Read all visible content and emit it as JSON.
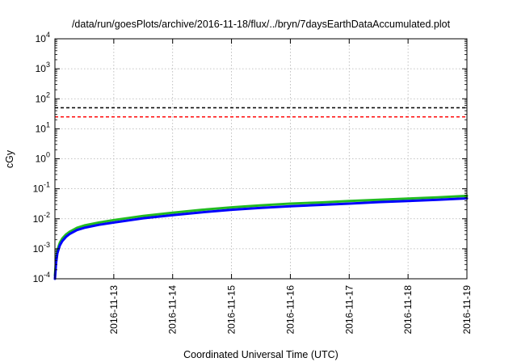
{
  "chart_data": {
    "type": "line",
    "title": "/data/run/goesPlots/archive/2016-11-18/flux/../bryn/7daysEarthDataAccumulated.plot",
    "xlabel": "Coordinated Universal Time (UTC)",
    "ylabel": "cGy",
    "x_ticks": [
      "2016-11-13",
      "2016-11-14",
      "2016-11-15",
      "2016-11-16",
      "2016-11-17",
      "2016-11-18",
      "2016-11-19"
    ],
    "xlim": [
      "2016-11-12T00:00",
      "2016-11-19T00:00"
    ],
    "y_scale": "log",
    "ylim": [
      0.0001,
      10000
    ],
    "y_ticks": [
      {
        "value": 0.0001,
        "base": "10",
        "exp": "-4"
      },
      {
        "value": 0.001,
        "base": "10",
        "exp": "-3"
      },
      {
        "value": 0.01,
        "base": "10",
        "exp": "-2"
      },
      {
        "value": 0.1,
        "base": "10",
        "exp": "-1"
      },
      {
        "value": 1,
        "base": "10",
        "exp": "0"
      },
      {
        "value": 10,
        "base": "10",
        "exp": "1"
      },
      {
        "value": 100,
        "base": "10",
        "exp": "2"
      },
      {
        "value": 1000,
        "base": "10",
        "exp": "3"
      },
      {
        "value": 10000,
        "base": "10",
        "exp": "4"
      }
    ],
    "grid": true,
    "thresholds": [
      {
        "value": 50,
        "color": "#000000",
        "style": "dashed"
      },
      {
        "value": 25,
        "color": "#ff0000",
        "style": "dashed"
      }
    ],
    "series": [
      {
        "color": "#22bb22",
        "x": [
          "2016-11-12T00:00",
          "2016-11-12T00:30",
          "2016-11-12T01:00",
          "2016-11-12T02:00",
          "2016-11-12T03:00",
          "2016-11-12T04:30",
          "2016-11-12T06:00",
          "2016-11-12T09:00",
          "2016-11-12T12:00",
          "2016-11-12T18:00",
          "2016-11-13T00:00",
          "2016-11-13T12:00",
          "2016-11-14T00:00",
          "2016-11-14T12:00",
          "2016-11-15T00:00",
          "2016-11-15T12:00",
          "2016-11-16T00:00",
          "2016-11-16T12:00",
          "2016-11-17T00:00",
          "2016-11-17T12:00",
          "2016-11-18T00:00",
          "2016-11-18T12:00",
          "2016-11-19T00:00"
        ],
        "values": [
          0.00013,
          0.00045,
          0.0009,
          0.0016,
          0.0022,
          0.003,
          0.0037,
          0.005,
          0.006,
          0.0075,
          0.0091,
          0.0125,
          0.016,
          0.02,
          0.024,
          0.028,
          0.032,
          0.035,
          0.039,
          0.043,
          0.047,
          0.052,
          0.058
        ]
      },
      {
        "color": "#0000ff",
        "x": [
          "2016-11-12T00:00",
          "2016-11-12T00:30",
          "2016-11-12T01:00",
          "2016-11-12T02:00",
          "2016-11-12T03:00",
          "2016-11-12T04:30",
          "2016-11-12T06:00",
          "2016-11-12T09:00",
          "2016-11-12T12:00",
          "2016-11-12T18:00",
          "2016-11-13T00:00",
          "2016-11-13T12:00",
          "2016-11-14T00:00",
          "2016-11-14T12:00",
          "2016-11-15T00:00",
          "2016-11-15T12:00",
          "2016-11-16T00:00",
          "2016-11-16T12:00",
          "2016-11-17T00:00",
          "2016-11-17T12:00",
          "2016-11-18T00:00",
          "2016-11-18T12:00",
          "2016-11-19T00:00"
        ],
        "values": [
          0.0001,
          0.00035,
          0.0007,
          0.0013,
          0.0018,
          0.0025,
          0.0031,
          0.0042,
          0.005,
          0.0063,
          0.0075,
          0.0104,
          0.0133,
          0.0165,
          0.02,
          0.023,
          0.026,
          0.029,
          0.032,
          0.036,
          0.039,
          0.043,
          0.048
        ]
      }
    ]
  },
  "colors": {
    "grid": "#b0b0b0",
    "axes": "#000000"
  }
}
